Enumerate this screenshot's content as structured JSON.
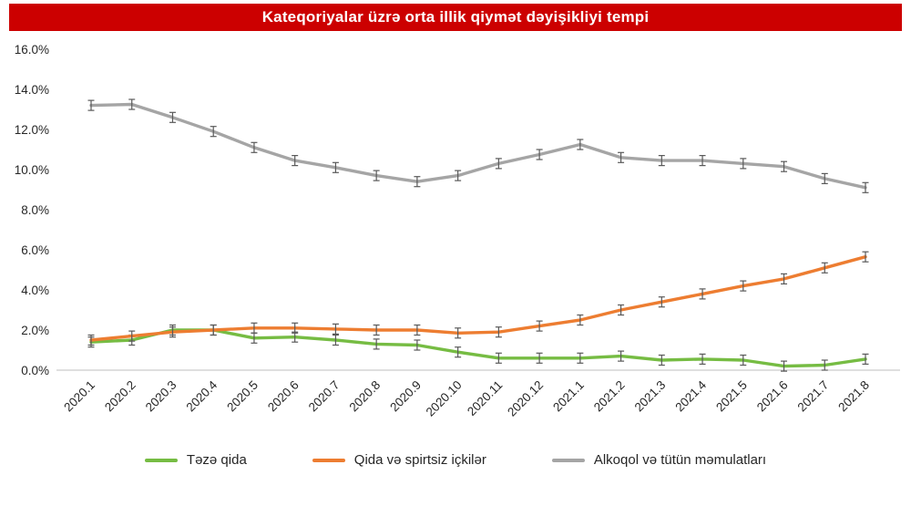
{
  "header": {
    "title": "Kateqoriyalar üzrə orta illik qiymət dəyişikliyi tempi",
    "background": "#cc0000",
    "text_color": "#ffffff"
  },
  "chart_data": {
    "type": "line",
    "title": "Kateqoriyalar üzrə orta illik qiymət dəyişikliyi tempi",
    "categories": [
      "2020.1",
      "2020.2",
      "2020.3",
      "2020.4",
      "2020.5",
      "2020.6",
      "2020.7",
      "2020.8",
      "2020.9",
      "2020.10",
      "2020.11",
      "2020.12",
      "2021.1",
      "2021.2",
      "2021.3",
      "2021.4",
      "2021.5",
      "2021.6",
      "2021.7",
      "2021.8"
    ],
    "series": [
      {
        "name": "Təzə qida",
        "color": "#76BC43",
        "values": [
          1.4,
          1.5,
          2.0,
          2.0,
          1.6,
          1.65,
          1.5,
          1.3,
          1.25,
          0.9,
          0.6,
          0.6,
          0.6,
          0.7,
          0.5,
          0.55,
          0.5,
          0.2,
          0.25,
          0.55
        ]
      },
      {
        "name": "Qida və spirtsiz içkilər",
        "color": "#ED7D31",
        "values": [
          1.5,
          1.7,
          1.9,
          2.0,
          2.1,
          2.1,
          2.05,
          2.0,
          2.0,
          1.85,
          1.9,
          2.2,
          2.5,
          3.0,
          3.4,
          3.8,
          4.2,
          4.55,
          5.1,
          5.65
        ]
      },
      {
        "name": "Alkoqol və tütün məmulatları",
        "color": "#A5A5A5",
        "values": [
          13.2,
          13.25,
          12.6,
          11.9,
          11.1,
          10.45,
          10.1,
          9.7,
          9.4,
          9.7,
          10.3,
          10.75,
          11.25,
          10.6,
          10.45,
          10.45,
          10.3,
          10.15,
          9.55,
          9.1
        ]
      }
    ],
    "error_bar": 0.25,
    "error_color": "#595959",
    "axis_color": "#bfbfbf",
    "ylim": [
      0,
      16
    ],
    "ytick_step": 2,
    "ytick_labels": [
      "0.0%",
      "2.0%",
      "4.0%",
      "6.0%",
      "8.0%",
      "10.0%",
      "12.0%",
      "14.0%",
      "16.0%"
    ],
    "grid": false,
    "legend_position": "bottom"
  }
}
